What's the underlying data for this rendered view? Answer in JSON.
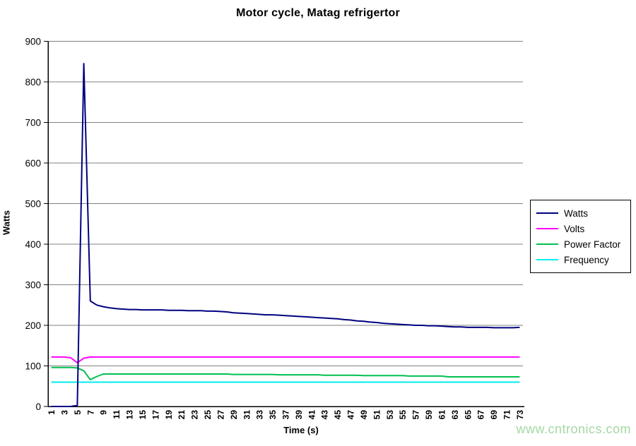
{
  "page": {
    "background": "#FFFFFF"
  },
  "chart_data": {
    "type": "line",
    "title": "Motor cycle, Matag refrigertor",
    "xlabel": "Time (s)",
    "ylabel": "Watts",
    "ylim": [
      0,
      900
    ],
    "y_ticks": [
      0,
      100,
      200,
      300,
      400,
      500,
      600,
      700,
      800,
      900
    ],
    "x": [
      1,
      2,
      3,
      4,
      5,
      6,
      7,
      8,
      9,
      10,
      11,
      12,
      13,
      14,
      15,
      16,
      17,
      18,
      19,
      20,
      21,
      22,
      23,
      24,
      25,
      26,
      27,
      28,
      29,
      30,
      31,
      32,
      33,
      34,
      35,
      36,
      37,
      38,
      39,
      40,
      41,
      42,
      43,
      44,
      45,
      46,
      47,
      48,
      49,
      50,
      51,
      52,
      53,
      54,
      55,
      56,
      57,
      58,
      59,
      60,
      61,
      62,
      63,
      64,
      65,
      66,
      67,
      68,
      69,
      70,
      71,
      72,
      73
    ],
    "x_tick_labels": [
      "1",
      "3",
      "5",
      "7",
      "9",
      "11",
      "13",
      "15",
      "17",
      "19",
      "21",
      "23",
      "25",
      "27",
      "29",
      "31",
      "33",
      "35",
      "37",
      "39",
      "41",
      "43",
      "45",
      "47",
      "49",
      "51",
      "53",
      "55",
      "57",
      "59",
      "61",
      "63",
      "65",
      "67",
      "69",
      "71",
      "73"
    ],
    "grid": "horizontal",
    "grid_color": "#808080",
    "axis_color": "#000000",
    "legend_position": "right",
    "series": [
      {
        "name": "Watts",
        "color": "#000080",
        "values": [
          0,
          0,
          0,
          0,
          3,
          845,
          260,
          250,
          246,
          243,
          241,
          240,
          239,
          239,
          238,
          238,
          238,
          238,
          237,
          237,
          237,
          236,
          236,
          236,
          235,
          235,
          234,
          233,
          231,
          230,
          229,
          228,
          227,
          226,
          226,
          225,
          224,
          223,
          222,
          221,
          220,
          219,
          218,
          217,
          216,
          214,
          213,
          211,
          210,
          208,
          207,
          205,
          204,
          203,
          202,
          201,
          200,
          200,
          199,
          199,
          198,
          197,
          196,
          196,
          195,
          195,
          195,
          195,
          194,
          194,
          194,
          194,
          195
        ]
      },
      {
        "name": "Volts",
        "color": "#FF00FF",
        "values": [
          122,
          122,
          122,
          120,
          108,
          119,
          122,
          122,
          122,
          122,
          122,
          122,
          122,
          122,
          122,
          122,
          122,
          122,
          122,
          122,
          122,
          122,
          122,
          122,
          122,
          122,
          122,
          122,
          122,
          122,
          122,
          122,
          122,
          122,
          122,
          122,
          122,
          122,
          122,
          122,
          122,
          122,
          122,
          122,
          122,
          122,
          122,
          122,
          122,
          122,
          122,
          122,
          122,
          122,
          122,
          122,
          122,
          122,
          122,
          122,
          122,
          122,
          122,
          122,
          122,
          122,
          122,
          122,
          122,
          122,
          122,
          122,
          122
        ]
      },
      {
        "name": "Power Factor",
        "color": "#00C050",
        "values": [
          96,
          96,
          96,
          96,
          95,
          88,
          66,
          74,
          80,
          80,
          80,
          80,
          80,
          80,
          80,
          80,
          80,
          80,
          80,
          80,
          80,
          80,
          80,
          80,
          80,
          80,
          80,
          80,
          79,
          79,
          79,
          79,
          79,
          79,
          79,
          78,
          78,
          78,
          78,
          78,
          78,
          78,
          77,
          77,
          77,
          77,
          77,
          77,
          76,
          76,
          76,
          76,
          76,
          76,
          76,
          75,
          75,
          75,
          75,
          75,
          75,
          73,
          73,
          73,
          73,
          73,
          73,
          73,
          73,
          73,
          73,
          73,
          73
        ]
      },
      {
        "name": "Frequency",
        "color": "#00EEEE",
        "values": [
          60,
          60,
          60,
          60,
          60,
          60,
          60,
          60,
          60,
          60,
          60,
          60,
          60,
          60,
          60,
          60,
          60,
          60,
          60,
          60,
          60,
          60,
          60,
          60,
          60,
          60,
          60,
          60,
          60,
          60,
          60,
          60,
          60,
          60,
          60,
          60,
          60,
          60,
          60,
          60,
          60,
          60,
          60,
          60,
          60,
          60,
          60,
          60,
          60,
          60,
          60,
          60,
          60,
          60,
          60,
          60,
          60,
          60,
          60,
          60,
          60,
          60,
          60,
          60,
          60,
          60,
          60,
          60,
          60,
          60,
          60,
          60,
          60
        ]
      }
    ]
  },
  "legend": {
    "items": [
      "Watts",
      "Volts",
      "Power Factor",
      "Frequency"
    ]
  },
  "watermark": {
    "text": "www.cntronics.com",
    "color": "#A4D8A4"
  }
}
